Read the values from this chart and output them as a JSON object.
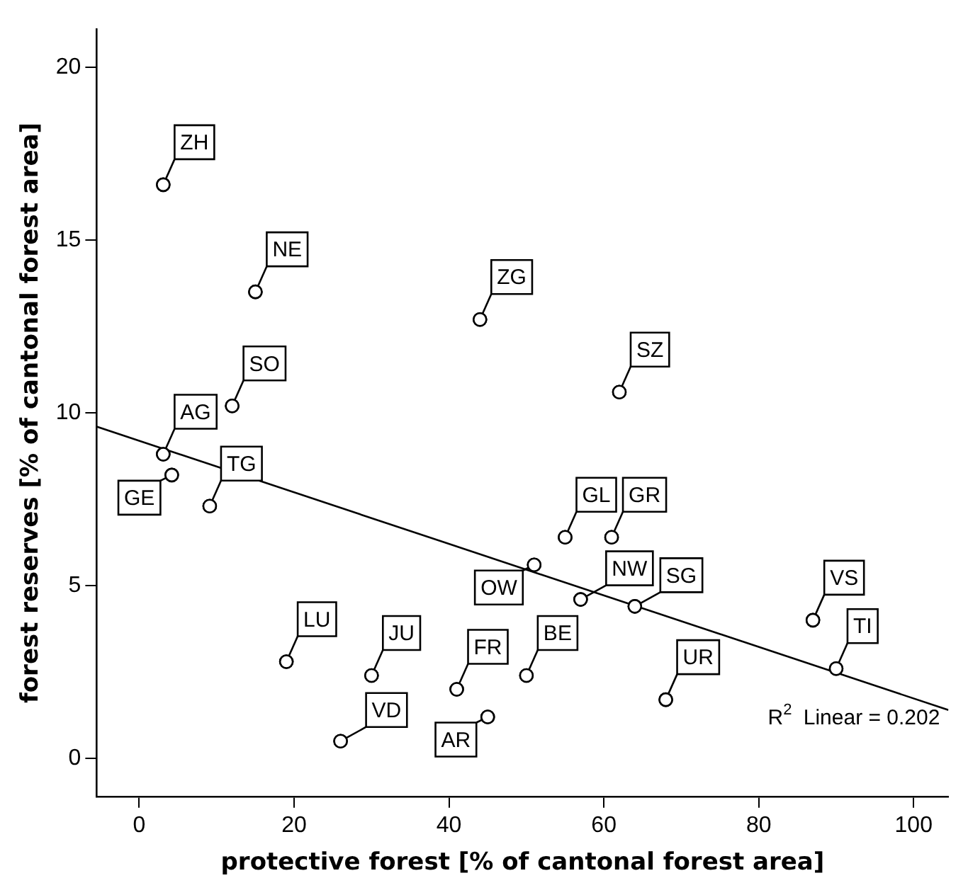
{
  "chart_data": {
    "type": "scatter",
    "xlabel": "protective forest [% of cantonal forest area]",
    "ylabel": "forest reserves [% of cantonal forest area]",
    "xlim": [
      -5.5,
      104.5
    ],
    "xticks": [
      0,
      20,
      40,
      60,
      80,
      100
    ],
    "ylim": [
      -1.1,
      21.1
    ],
    "yticks": [
      0,
      5,
      10,
      15,
      20
    ],
    "grid": false,
    "legend": false,
    "marker": "circle",
    "series": [
      {
        "color": "#000000",
        "x": [
          3.1,
          15,
          12,
          3.1,
          4.2,
          9.1,
          19,
          30,
          26,
          41,
          45,
          50,
          51,
          55,
          61,
          57,
          64,
          68,
          87,
          90,
          44,
          62
        ],
        "values": [
          16.6,
          13.5,
          10.2,
          8.8,
          8.2,
          7.3,
          2.8,
          2.4,
          0.5,
          2.0,
          1.2,
          2.4,
          5.6,
          6.4,
          6.4,
          4.6,
          4.4,
          1.7,
          4.0,
          2.6,
          12.7,
          10.6
        ]
      },
      {
        "type": "line",
        "color": "#000000",
        "line_style": "solid",
        "marker": "none",
        "x": [
          -5.5,
          104.5
        ],
        "values": [
          9.6,
          1.4
        ]
      }
    ],
    "annotations": [
      {
        "text": "ZH",
        "x": 3.1,
        "y": 16.6
      },
      {
        "text": "NE",
        "x": 15,
        "y": 13.5
      },
      {
        "text": "SO",
        "x": 12,
        "y": 10.2
      },
      {
        "text": "AG",
        "x": 3.1,
        "y": 8.8
      },
      {
        "text": "GE",
        "x": 4.2,
        "y": 8.2
      },
      {
        "text": "TG",
        "x": 9.1,
        "y": 7.3
      },
      {
        "text": "LU",
        "x": 19,
        "y": 2.8
      },
      {
        "text": "JU",
        "x": 30,
        "y": 2.4
      },
      {
        "text": "VD",
        "x": 26,
        "y": 0.5
      },
      {
        "text": "FR",
        "x": 41,
        "y": 2.0
      },
      {
        "text": "AR",
        "x": 45,
        "y": 1.2
      },
      {
        "text": "BE",
        "x": 50,
        "y": 2.4
      },
      {
        "text": "OW",
        "x": 51,
        "y": 5.6
      },
      {
        "text": "GL",
        "x": 55,
        "y": 6.4
      },
      {
        "text": "GR",
        "x": 61,
        "y": 6.4
      },
      {
        "text": "NW",
        "x": 57,
        "y": 4.6
      },
      {
        "text": "SG",
        "x": 64,
        "y": 4.4
      },
      {
        "text": "UR",
        "x": 68,
        "y": 1.7
      },
      {
        "text": "VS",
        "x": 87,
        "y": 4.0
      },
      {
        "text": "TI",
        "x": 90,
        "y": 2.6
      },
      {
        "text": "ZG",
        "x": 44,
        "y": 12.7
      },
      {
        "text": "SZ",
        "x": 62,
        "y": 10.6
      },
      "R$^{2}$ Linear = 0.202"
    ]
  }
}
